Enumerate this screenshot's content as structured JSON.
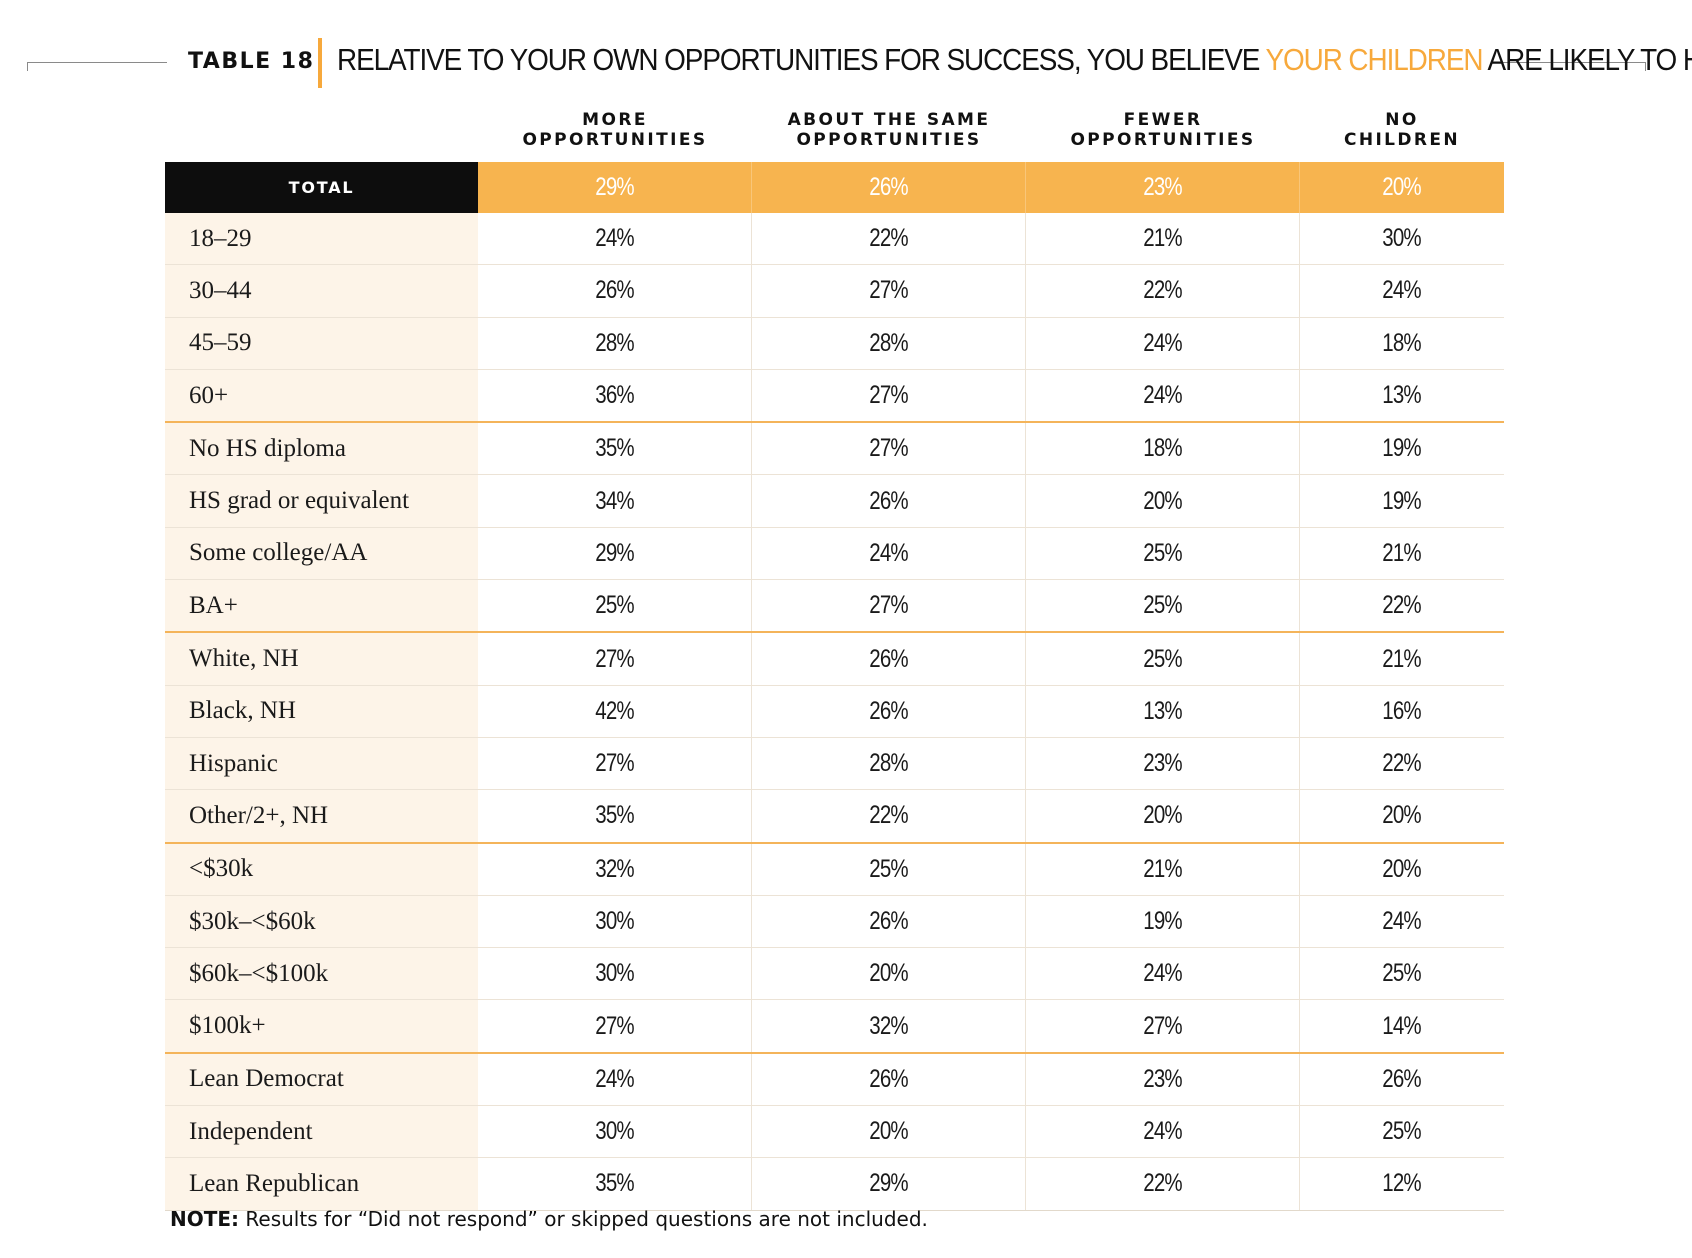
{
  "header": {
    "table_label": "TABLE 18",
    "title_before": "RELATIVE TO YOUR OWN OPPORTUNITIES FOR SUCCESS, YOU BELIEVE ",
    "title_highlight": "YOUR CHILDREN",
    "title_after": " ARE LIKELY TO HAVE...",
    "highlight_color": "#f7a93c"
  },
  "columns": [
    {
      "line1": "MORE",
      "line2": "OPPORTUNITIES"
    },
    {
      "line1": "ABOUT THE SAME",
      "line2": "OPPORTUNITIES"
    },
    {
      "line1": "FEWER",
      "line2": "OPPORTUNITIES"
    },
    {
      "line1": "NO",
      "line2": "CHILDREN"
    }
  ],
  "total": {
    "label": "TOTAL",
    "values": [
      "29%",
      "26%",
      "23%",
      "20%"
    ]
  },
  "rows": [
    {
      "label": "18–29",
      "values": [
        "24%",
        "22%",
        "21%",
        "30%"
      ]
    },
    {
      "label": "30–44",
      "values": [
        "26%",
        "27%",
        "22%",
        "24%"
      ]
    },
    {
      "label": "45–59",
      "values": [
        "28%",
        "28%",
        "24%",
        "18%"
      ]
    },
    {
      "label": "60+",
      "values": [
        "36%",
        "27%",
        "24%",
        "13%"
      ]
    },
    {
      "label": "No HS diploma",
      "values": [
        "35%",
        "27%",
        "18%",
        "19%"
      ]
    },
    {
      "label": "HS grad or equivalent",
      "values": [
        "34%",
        "26%",
        "20%",
        "19%"
      ]
    },
    {
      "label": "Some college/AA",
      "values": [
        "29%",
        "24%",
        "25%",
        "21%"
      ]
    },
    {
      "label": "BA+",
      "values": [
        "25%",
        "27%",
        "25%",
        "22%"
      ]
    },
    {
      "label": "White, NH",
      "values": [
        "27%",
        "26%",
        "25%",
        "21%"
      ]
    },
    {
      "label": "Black, NH",
      "values": [
        "42%",
        "26%",
        "13%",
        "16%"
      ]
    },
    {
      "label": "Hispanic",
      "values": [
        "27%",
        "28%",
        "23%",
        "22%"
      ]
    },
    {
      "label": "Other/2+, NH",
      "values": [
        "35%",
        "22%",
        "20%",
        "20%"
      ]
    },
    {
      "label": "<$30k",
      "values": [
        "32%",
        "25%",
        "21%",
        "20%"
      ]
    },
    {
      "label": "$30k–<$60k",
      "values": [
        "30%",
        "26%",
        "19%",
        "24%"
      ]
    },
    {
      "label": "$60k–<$100k",
      "values": [
        "30%",
        "20%",
        "24%",
        "25%"
      ]
    },
    {
      "label": "$100k+",
      "values": [
        "27%",
        "32%",
        "27%",
        "14%"
      ]
    },
    {
      "label": "Lean Democrat",
      "values": [
        "24%",
        "26%",
        "23%",
        "26%"
      ]
    },
    {
      "label": "Independent",
      "values": [
        "30%",
        "20%",
        "24%",
        "25%"
      ]
    },
    {
      "label": "Lean Republican",
      "values": [
        "35%",
        "29%",
        "22%",
        "12%"
      ]
    }
  ],
  "note": {
    "prefix": "NOTE:",
    "text": " Results for “Did not respond” or skipped questions are not included."
  }
}
